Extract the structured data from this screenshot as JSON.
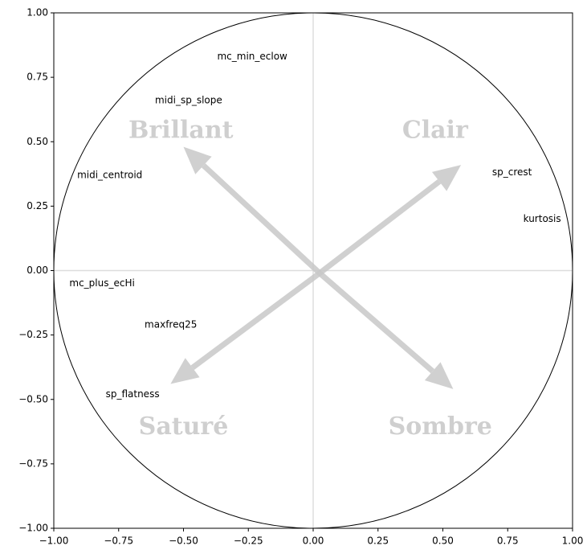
{
  "chart_data": {
    "type": "scatter",
    "xlim": [
      -1,
      1
    ],
    "ylim": [
      -1,
      1
    ],
    "xticks": [
      {
        "value": -1,
        "label": "−1.00"
      },
      {
        "value": -0.75,
        "label": "−0.75"
      },
      {
        "value": -0.5,
        "label": "−0.50"
      },
      {
        "value": -0.25,
        "label": "−0.25"
      },
      {
        "value": 0,
        "label": "0.00"
      },
      {
        "value": 0.25,
        "label": "0.25"
      },
      {
        "value": 0.5,
        "label": "0.50"
      },
      {
        "value": 0.75,
        "label": "0.75"
      },
      {
        "value": 1,
        "label": "1.00"
      }
    ],
    "yticks": [
      {
        "value": -1,
        "label": "−1.00"
      },
      {
        "value": -0.75,
        "label": "−0.75"
      },
      {
        "value": -0.5,
        "label": "−0.50"
      },
      {
        "value": -0.25,
        "label": "−0.25"
      },
      {
        "value": 0,
        "label": "0.00"
      },
      {
        "value": 0.25,
        "label": "0.25"
      },
      {
        "value": 0.5,
        "label": "0.50"
      },
      {
        "value": 0.75,
        "label": "0.75"
      },
      {
        "value": 1,
        "label": "1.00"
      }
    ],
    "unit_circle": true,
    "zero_lines": true,
    "points": [
      {
        "label": "mc_min_eclow",
        "x": -0.37,
        "y": 0.83
      },
      {
        "label": "midi_sp_slope",
        "x": -0.61,
        "y": 0.66
      },
      {
        "label": "midi_centroid",
        "x": -0.91,
        "y": 0.37
      },
      {
        "label": "sp_crest",
        "x": 0.69,
        "y": 0.38
      },
      {
        "label": "kurtosis",
        "x": 0.81,
        "y": 0.2
      },
      {
        "label": "mc_plus_ecHi",
        "x": -0.94,
        "y": -0.05
      },
      {
        "label": "maxfreq25",
        "x": -0.65,
        "y": -0.21
      },
      {
        "label": "sp_flatness",
        "x": -0.8,
        "y": -0.48
      }
    ],
    "arrow_color": "#c8c8c8",
    "arrows": [
      {
        "x0": 0.025,
        "y0": -0.01,
        "x1": -0.5,
        "y1": 0.48
      },
      {
        "x0": 0.025,
        "y0": -0.01,
        "x1": 0.57,
        "y1": 0.41
      },
      {
        "x0": 0.025,
        "y0": -0.01,
        "x1": -0.55,
        "y1": -0.44
      },
      {
        "x0": 0.025,
        "y0": -0.01,
        "x1": 0.54,
        "y1": -0.46
      }
    ],
    "annotations": [
      {
        "text": "Brillant",
        "x": -0.51,
        "y": 0.54
      },
      {
        "text": "Clair",
        "x": 0.47,
        "y": 0.54
      },
      {
        "text": "Saturé",
        "x": -0.5,
        "y": -0.61
      },
      {
        "text": "Sombre",
        "x": 0.49,
        "y": -0.61
      }
    ]
  }
}
